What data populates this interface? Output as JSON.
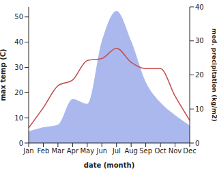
{
  "chart_data": {
    "type": "line",
    "xlabel": "date (month)",
    "ylabel": "max temp (C)",
    "y2label": "med. precipitation (kg/m2)",
    "categories": [
      "Jan",
      "Feb",
      "Mar",
      "Apr",
      "May",
      "Jun",
      "Jul",
      "Aug",
      "Sep",
      "Oct",
      "Nov",
      "Dec"
    ],
    "ylim": [
      0,
      54
    ],
    "yticks": [
      0,
      10,
      20,
      30,
      40,
      50
    ],
    "y2lim": [
      0,
      40
    ],
    "y2ticks": [
      0,
      10,
      20,
      30,
      40
    ],
    "series": [
      {
        "type": "area",
        "axis": "y2",
        "color": "#aab8ee",
        "values": [
          3.4,
          4.6,
          5.4,
          12.9,
          11.5,
          30,
          38.8,
          30,
          17.9,
          11.9,
          8.2,
          5.2
        ]
      },
      {
        "type": "line",
        "axis": "y",
        "color": "#c85050",
        "values": [
          6,
          14,
          22.7,
          25,
          32.7,
          33.5,
          37.6,
          32,
          29.5,
          29.5,
          18.6,
          9
        ]
      }
    ]
  }
}
